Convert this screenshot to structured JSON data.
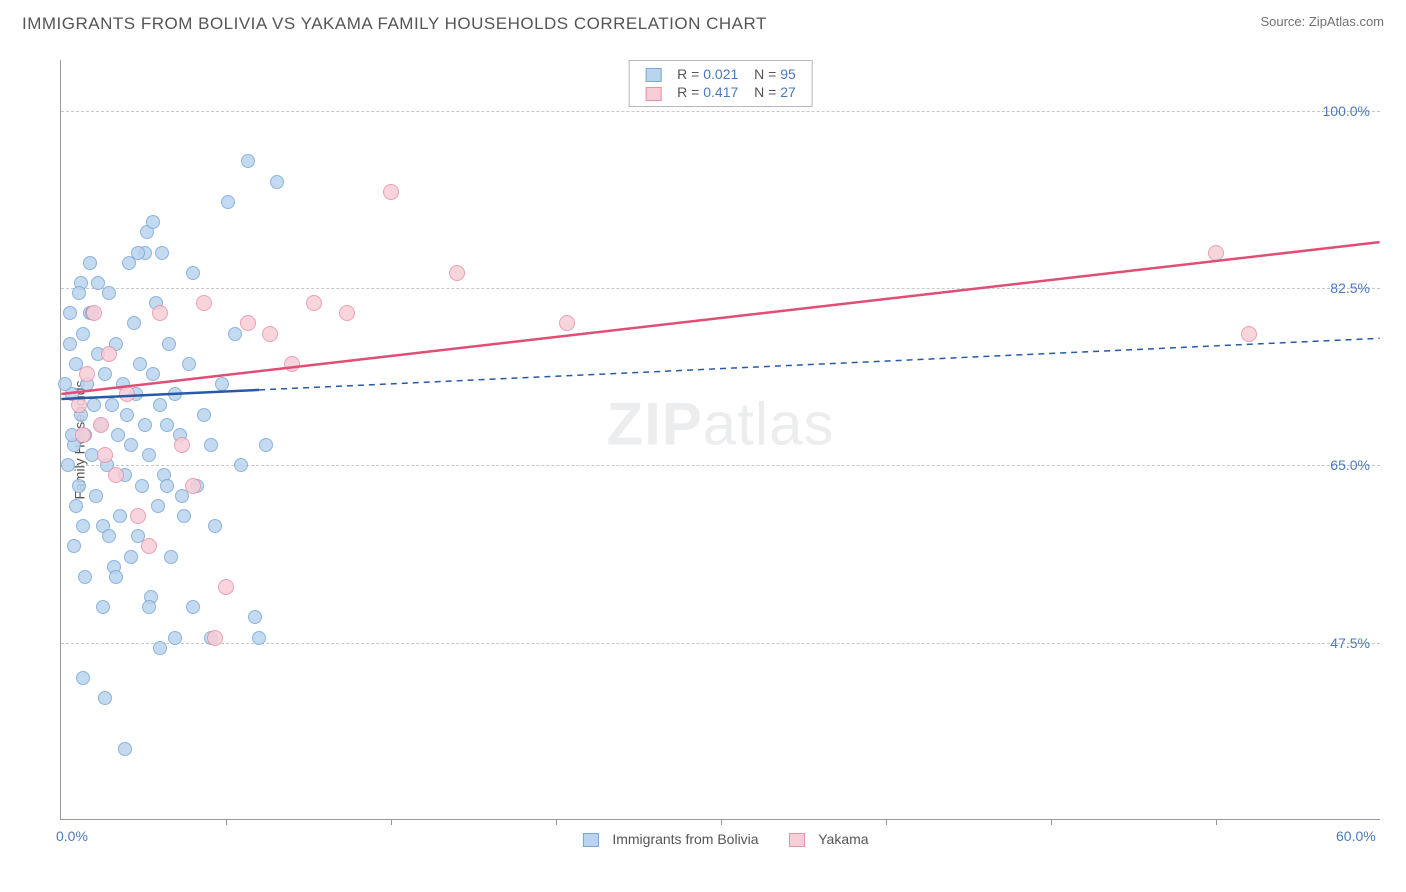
{
  "title": "IMMIGRANTS FROM BOLIVIA VS YAKAMA FAMILY HOUSEHOLDS CORRELATION CHART",
  "source_label": "Source: ZipAtlas.com",
  "watermark": "ZIPatlas",
  "chart": {
    "type": "scatter",
    "ylabel": "Family Households",
    "background_color": "#ffffff",
    "grid_color": "#c8c8c8",
    "axis_color": "#9a9a9a",
    "text_color": "#555555",
    "value_color": "#4a7abc",
    "xlim": [
      0,
      60
    ],
    "ylim": [
      30,
      105
    ],
    "xticks": [
      0,
      60
    ],
    "xtick_labels": [
      "0.0%",
      "60.0%"
    ],
    "yticks": [
      47.5,
      65,
      82.5,
      100
    ],
    "ytick_labels": [
      "47.5%",
      "65.0%",
      "82.5%",
      "100.0%"
    ],
    "x_minor_ticks": [
      7.5,
      15,
      22.5,
      30,
      37.5,
      45,
      52.5
    ],
    "series": [
      {
        "name": "Immigrants from Bolivia",
        "fill": "#b9d4ee",
        "stroke": "#7ba8d6",
        "trend_color": "#2859a5",
        "trend_dashed_after_x": 9,
        "marker_radius": 7,
        "R": "0.021",
        "N": "95",
        "trend": {
          "x1": 0,
          "y1": 71.5,
          "x2": 60,
          "y2": 77.5
        },
        "points": [
          [
            0.5,
            72
          ],
          [
            0.6,
            67
          ],
          [
            0.7,
            75
          ],
          [
            0.8,
            63
          ],
          [
            0.9,
            70
          ],
          [
            1.0,
            78
          ],
          [
            1.1,
            68
          ],
          [
            1.2,
            73
          ],
          [
            1.3,
            80
          ],
          [
            1.4,
            66
          ],
          [
            1.5,
            71
          ],
          [
            1.6,
            62
          ],
          [
            1.7,
            76
          ],
          [
            1.8,
            69
          ],
          [
            1.9,
            59
          ],
          [
            2.0,
            74
          ],
          [
            2.1,
            65
          ],
          [
            2.2,
            82
          ],
          [
            2.3,
            71
          ],
          [
            2.4,
            55
          ],
          [
            2.5,
            77
          ],
          [
            2.6,
            68
          ],
          [
            2.7,
            60
          ],
          [
            2.8,
            73
          ],
          [
            2.9,
            64
          ],
          [
            3.0,
            70
          ],
          [
            3.1,
            85
          ],
          [
            3.2,
            67
          ],
          [
            3.3,
            79
          ],
          [
            3.4,
            72
          ],
          [
            3.5,
            58
          ],
          [
            3.6,
            75
          ],
          [
            3.7,
            63
          ],
          [
            3.8,
            69
          ],
          [
            3.9,
            88
          ],
          [
            4.0,
            66
          ],
          [
            4.1,
            52
          ],
          [
            4.2,
            74
          ],
          [
            4.3,
            81
          ],
          [
            4.4,
            61
          ],
          [
            4.5,
            71
          ],
          [
            4.6,
            86
          ],
          [
            4.7,
            64
          ],
          [
            4.8,
            69
          ],
          [
            4.9,
            77
          ],
          [
            5.0,
            56
          ],
          [
            5.2,
            72
          ],
          [
            5.4,
            68
          ],
          [
            5.6,
            60
          ],
          [
            5.8,
            75
          ],
          [
            6.0,
            84
          ],
          [
            6.2,
            63
          ],
          [
            6.5,
            70
          ],
          [
            6.8,
            48
          ],
          [
            7.0,
            59
          ],
          [
            7.3,
            73
          ],
          [
            7.6,
            91
          ],
          [
            7.9,
            78
          ],
          [
            8.2,
            65
          ],
          [
            8.5,
            95
          ],
          [
            8.8,
            50
          ],
          [
            9.3,
            67
          ],
          [
            9.8,
            93
          ],
          [
            2.0,
            42
          ],
          [
            2.9,
            37
          ],
          [
            3.8,
            86
          ],
          [
            1.0,
            44
          ],
          [
            4.5,
            47
          ],
          [
            5.2,
            48
          ],
          [
            6.0,
            51
          ],
          [
            1.3,
            85
          ],
          [
            1.7,
            83
          ],
          [
            0.4,
            80
          ],
          [
            0.9,
            83
          ],
          [
            2.2,
            58
          ],
          [
            3.5,
            86
          ],
          [
            4.2,
            89
          ],
          [
            0.6,
            57
          ],
          [
            1.1,
            54
          ],
          [
            1.9,
            51
          ],
          [
            0.3,
            65
          ],
          [
            0.5,
            68
          ],
          [
            0.7,
            61
          ],
          [
            1.0,
            59
          ],
          [
            2.5,
            54
          ],
          [
            3.2,
            56
          ],
          [
            4.0,
            51
          ],
          [
            5.5,
            62
          ],
          [
            6.8,
            67
          ],
          [
            0.2,
            73
          ],
          [
            0.4,
            77
          ],
          [
            0.8,
            82
          ],
          [
            1.4,
            80
          ],
          [
            4.8,
            63
          ],
          [
            9.0,
            48
          ]
        ]
      },
      {
        "name": "Yakama",
        "fill": "#f7cdd8",
        "stroke": "#e890a8",
        "trend_color": "#e14d73",
        "trend_dashed_after_x": 60,
        "marker_radius": 8,
        "R": "0.417",
        "N": "27",
        "trend": {
          "x1": 0,
          "y1": 72,
          "x2": 60,
          "y2": 87
        },
        "points": [
          [
            1.0,
            68
          ],
          [
            1.5,
            80
          ],
          [
            2.0,
            66
          ],
          [
            2.5,
            64
          ],
          [
            3.0,
            72
          ],
          [
            3.5,
            60
          ],
          [
            4.5,
            80
          ],
          [
            5.5,
            67
          ],
          [
            6.5,
            81
          ],
          [
            7.5,
            53
          ],
          [
            8.5,
            79
          ],
          [
            9.5,
            78
          ],
          [
            10.5,
            75
          ],
          [
            11.5,
            81
          ],
          [
            13.0,
            80
          ],
          [
            15.0,
            92
          ],
          [
            18.0,
            84
          ],
          [
            23.0,
            79
          ],
          [
            7.0,
            48
          ],
          [
            4.0,
            57
          ],
          [
            2.2,
            76
          ],
          [
            1.2,
            74
          ],
          [
            1.8,
            69
          ],
          [
            0.8,
            71
          ],
          [
            6.0,
            63
          ],
          [
            54.0,
            78
          ],
          [
            52.5,
            86
          ]
        ]
      }
    ],
    "legend_bottom": [
      {
        "label": "Immigrants from Bolivia",
        "fill": "#b9d4ee",
        "stroke": "#7ba8d6"
      },
      {
        "label": "Yakama",
        "fill": "#f7cdd8",
        "stroke": "#e890a8"
      }
    ]
  }
}
